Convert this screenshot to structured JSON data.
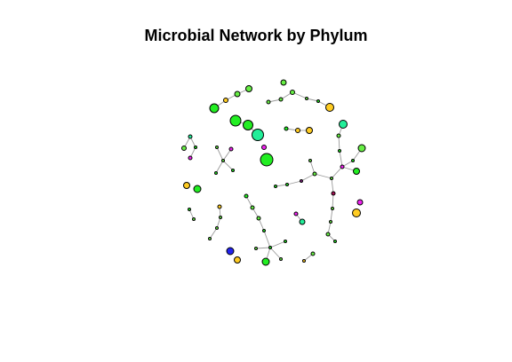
{
  "title": "Microbial Network by Phylum",
  "colors": {
    "green": "#22ee22",
    "lightgreen": "#66ee44",
    "cyan": "#22ee99",
    "yellow": "#ffcc22",
    "magenta": "#ee22ee",
    "purple": "#882288",
    "blue": "#2222ee",
    "darkred": "#aa1155",
    "white": "#ffffff"
  }
}
